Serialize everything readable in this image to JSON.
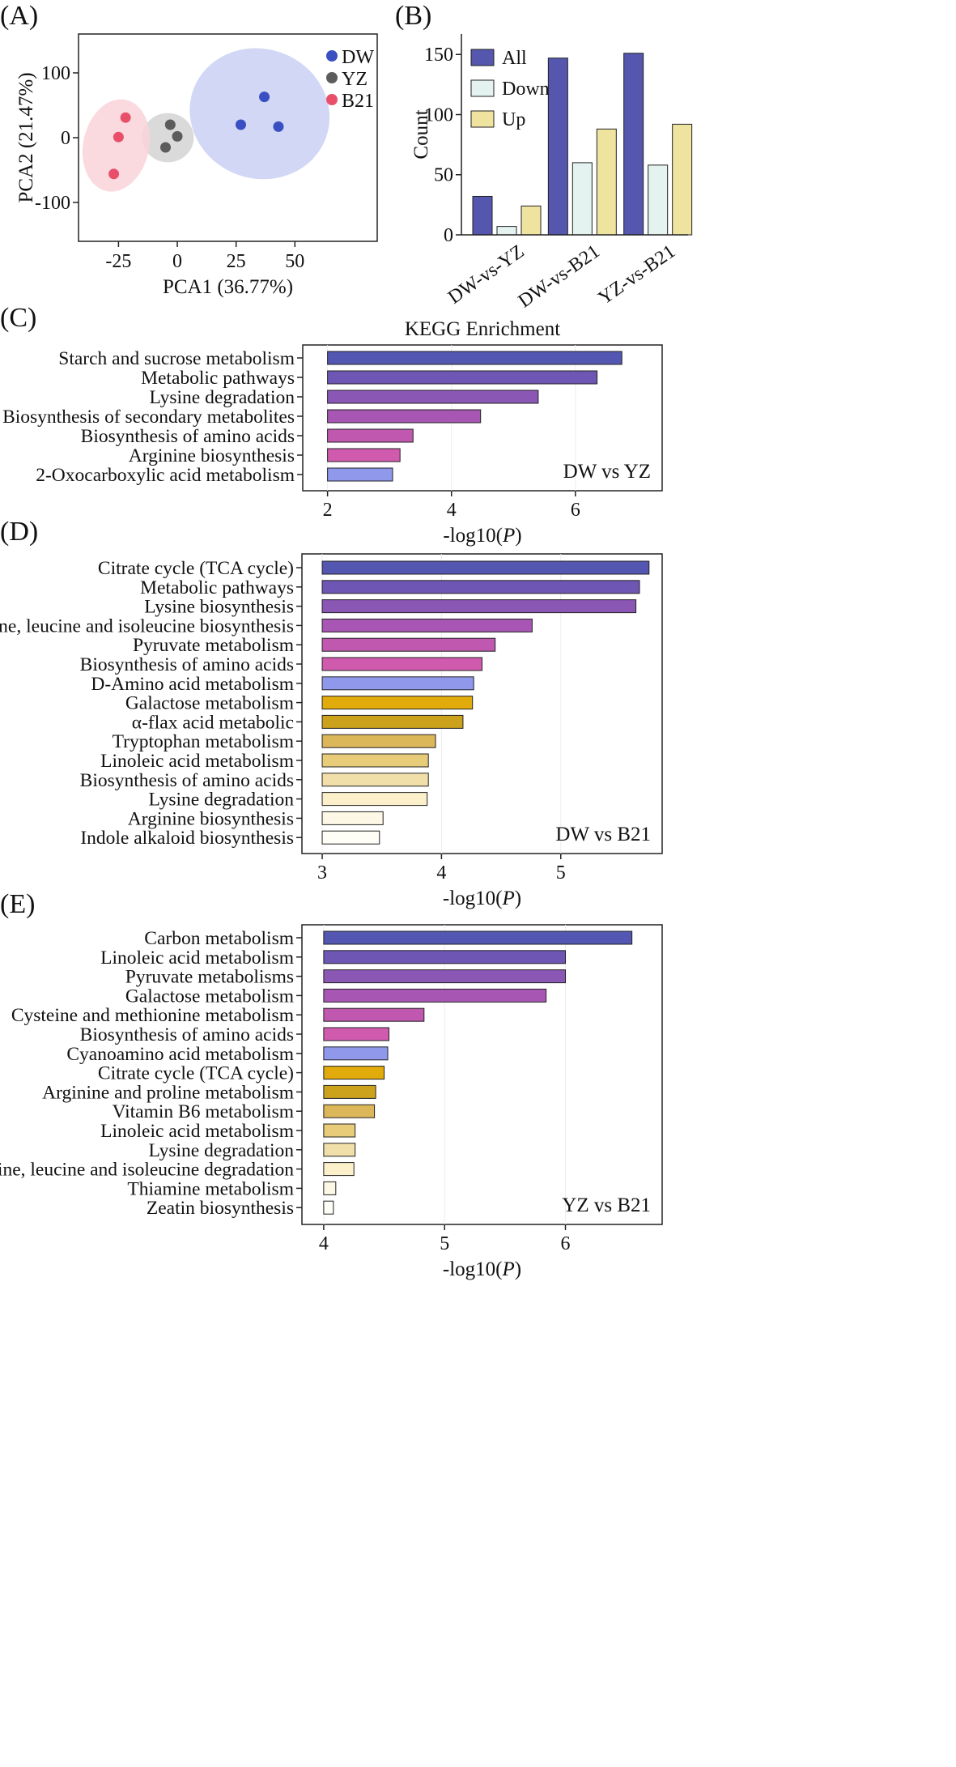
{
  "colors": {
    "DW": "#3a4fc1",
    "YZ": "#5c5c5c",
    "B21": "#e8506a",
    "DW_ellipse": "#c9d0f3",
    "YZ_ellipse": "#d4d4d4",
    "B21_ellipse": "#f9d3d8",
    "All": "#5457ad",
    "Down": "#e4f3ef",
    "Up": "#efe3a0"
  },
  "chart_data": [
    {
      "id": "A",
      "panel_label": "(A)",
      "type": "scatter",
      "xlabel": "PCA1 (36.77%)",
      "ylabel": "PCA2 (21.47%)",
      "xlim": [
        -42,
        85
      ],
      "ylim": [
        -160,
        160
      ],
      "xticks": [
        -25,
        0,
        25,
        50
      ],
      "yticks": [
        100,
        0,
        -100
      ],
      "xtick_labels": [
        "-25",
        "0",
        "25",
        "50"
      ],
      "ytick_labels": [
        "100",
        "0",
        "-100"
      ],
      "legend": [
        "DW",
        "YZ",
        "B21"
      ],
      "series": [
        {
          "name": "DW",
          "points": [
            [
              37,
              63
            ],
            [
              27,
              20
            ],
            [
              43,
              17
            ]
          ],
          "ellipse": {
            "cx": 35,
            "cy": 37,
            "rx": 30,
            "ry": 100
          }
        },
        {
          "name": "YZ",
          "points": [
            [
              -3,
              20
            ],
            [
              0,
              2
            ],
            [
              -5,
              -15
            ]
          ],
          "ellipse": {
            "cx": -4,
            "cy": 0,
            "rx": 11,
            "ry": 38
          }
        },
        {
          "name": "B21",
          "points": [
            [
              -22,
              31
            ],
            [
              -25,
              1
            ],
            [
              -27,
              -56
            ]
          ],
          "ellipse": {
            "cx": -26,
            "cy": -12,
            "rx": 14,
            "ry": 72
          }
        }
      ]
    },
    {
      "id": "B",
      "panel_label": "(B)",
      "type": "bar",
      "ylabel": "Count",
      "ylim": [
        0,
        167
      ],
      "yticks": [
        0,
        50,
        100,
        150
      ],
      "ytick_labels": [
        "0",
        "50",
        "100",
        "150"
      ],
      "categories": [
        "DW-vs-YZ",
        "DW-vs-B21",
        "YZ-vs-B21"
      ],
      "series": [
        {
          "name": "All",
          "values": [
            32,
            147,
            151
          ]
        },
        {
          "name": "Down",
          "values": [
            7,
            60,
            58
          ]
        },
        {
          "name": "Up",
          "values": [
            24,
            88,
            92
          ]
        }
      ]
    },
    {
      "id": "C",
      "panel_label": "(C)",
      "type": "bar",
      "orientation": "horizontal",
      "title": "KEGG Enrichment",
      "corner_label": "DW vs YZ",
      "xlabel_prefix": "-log10(",
      "xlabel_italic": "P",
      "xlabel_suffix": ")",
      "xlim": [
        1.6,
        7.4
      ],
      "base": 2,
      "xticks": [
        2,
        4,
        6
      ],
      "xtick_labels": [
        "2",
        "4",
        "6"
      ],
      "categories": [
        "Starch and sucrose metabolism",
        "Metabolic pathways",
        "Lysine degradation",
        "Biosynthesis of secondary metabolites",
        "Biosynthesis of amino acids",
        "Arginine biosynthesis",
        "2-Oxocarboxylic acid metabolism"
      ],
      "values": [
        6.75,
        6.35,
        5.4,
        4.47,
        3.38,
        3.17,
        3.05
      ],
      "bar_colors": [
        "#5357b1",
        "#6e56b4",
        "#8a57b4",
        "#a757b3",
        "#c158b0",
        "#d05bae",
        "#8f98ea"
      ]
    },
    {
      "id": "D",
      "panel_label": "(D)",
      "type": "bar",
      "orientation": "horizontal",
      "corner_label": "DW vs B21",
      "xlabel_prefix": "-log10(",
      "xlabel_italic": "P",
      "xlabel_suffix": ")",
      "xlim": [
        2.83,
        5.85
      ],
      "base": 3,
      "xticks": [
        3,
        4,
        5
      ],
      "xtick_labels": [
        "3",
        "4",
        "5"
      ],
      "categories": [
        "Citrate cycle (TCA cycle)",
        "Metabolic pathways",
        "Lysine biosynthesis",
        "Valine, leucine and isoleucine biosynthesis",
        "Pyruvate metabolism",
        "Biosynthesis of amino acids",
        "D-Amino acid metabolism",
        "Galactose metabolism",
        "α-flax acid metabolic",
        "Tryptophan metabolism",
        "Linoleic acid metabolism",
        "Biosynthesis of amino acids",
        "Lysine degradation",
        "Arginine biosynthesis",
        "Indole alkaloid biosynthesis"
      ],
      "values": [
        5.74,
        5.66,
        5.63,
        4.76,
        4.45,
        4.34,
        4.27,
        4.26,
        4.18,
        3.95,
        3.89,
        3.89,
        3.88,
        3.51,
        3.48
      ],
      "bar_colors": [
        "#5357b1",
        "#6e56b4",
        "#8a57b4",
        "#a757b3",
        "#c158b0",
        "#d05bae",
        "#8f98ea",
        "#e2ab0c",
        "#cca21c",
        "#dcb75a",
        "#e8cc7a",
        "#f1dfaa",
        "#fbf0c9",
        "#fdf8e6",
        "#fefdf6"
      ]
    },
    {
      "id": "E",
      "panel_label": "(E)",
      "type": "bar",
      "orientation": "horizontal",
      "corner_label": "YZ vs B21",
      "xlabel_prefix": "-log10(",
      "xlabel_italic": "P",
      "xlabel_suffix": ")",
      "xlim": [
        3.82,
        6.8
      ],
      "base": 4,
      "xticks": [
        4,
        5,
        6
      ],
      "xtick_labels": [
        "4",
        "5",
        "6"
      ],
      "categories": [
        "Carbon metabolism",
        "Linoleic acid metabolism",
        "Pyruvate metabolisms",
        "Galactose metabolism",
        "Cysteine and methionine metabolism",
        "Biosynthesis of amino acids",
        "Cyanoamino acid metabolism",
        "Citrate cycle (TCA cycle)",
        "Arginine and proline metabolism",
        "Vitamin B6 metabolism",
        "Linoleic acid metabolism",
        "Lysine degradation",
        "Valine, leucine and isoleucine degradation",
        "Thiamine metabolism",
        "Zeatin biosynthesis"
      ],
      "values": [
        6.55,
        6.0,
        6.0,
        5.84,
        4.83,
        4.54,
        4.53,
        4.5,
        4.43,
        4.42,
        4.26,
        4.26,
        4.25,
        4.1,
        4.08
      ],
      "bar_colors": [
        "#5357b1",
        "#6e56b4",
        "#8a57b4",
        "#a757b3",
        "#c158b0",
        "#d05bae",
        "#8f98ea",
        "#e2ab0c",
        "#cca21c",
        "#dcb75a",
        "#e8cc7a",
        "#f1dfaa",
        "#fbf0c9",
        "#fdf8e6",
        "#fefdf6"
      ]
    }
  ]
}
